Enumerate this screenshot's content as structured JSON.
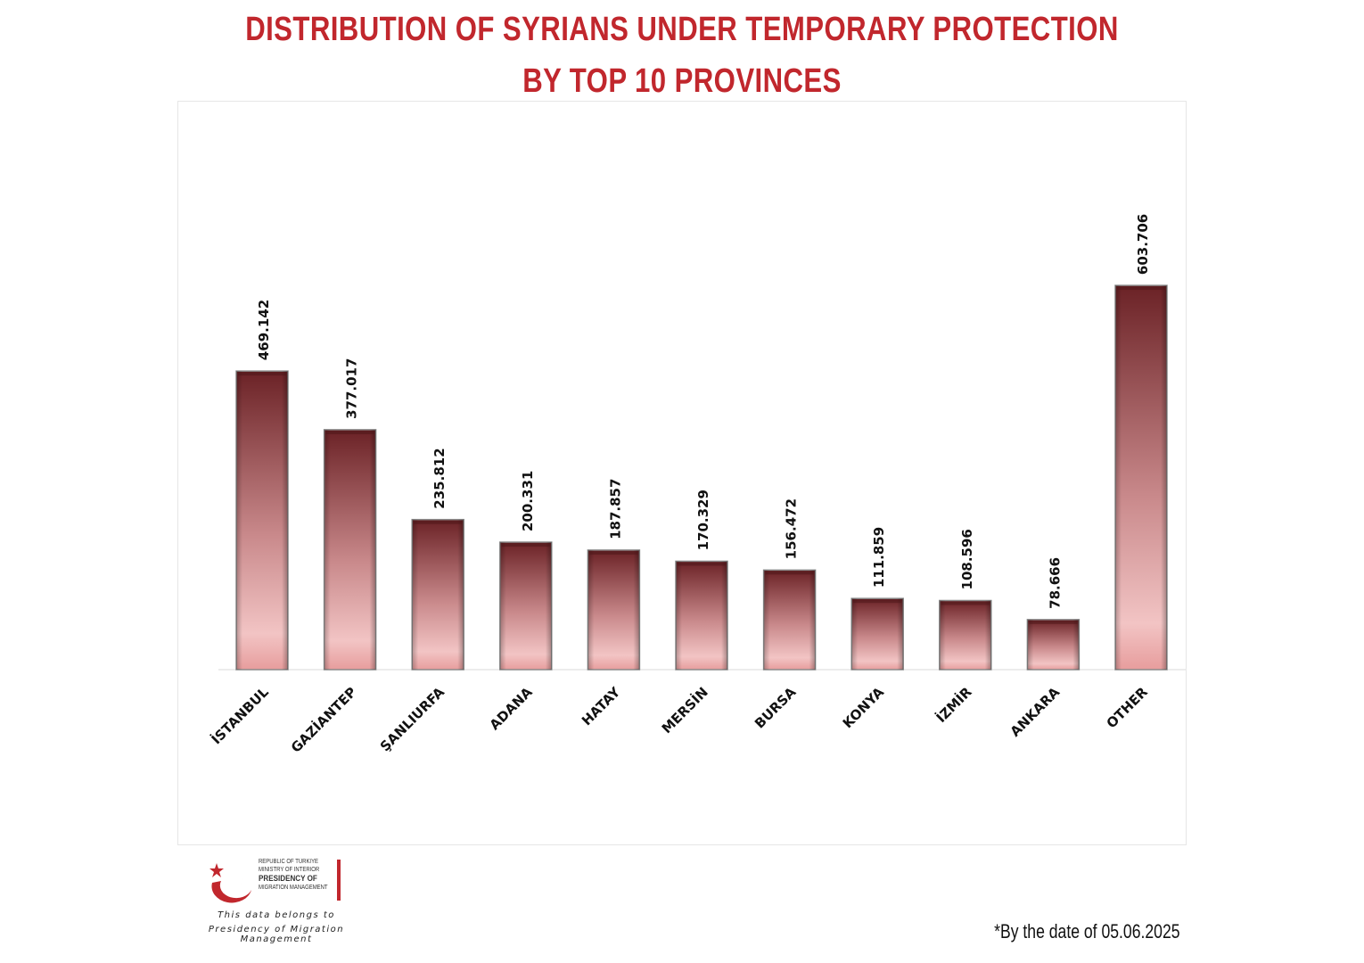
{
  "title_line1": "DISTRIBUTION OF SYRIANS UNDER TEMPORARY PROTECTION",
  "title_line2": "BY TOP 10 PROVINCES",
  "chart_data": {
    "type": "bar",
    "title": "DISTRIBUTION OF SYRIANS UNDER TEMPORARY PROTECTION BY TOP 10 PROVINCES",
    "categories": [
      "İSTANBUL",
      "GAZİANTEP",
      "ŞANLIURFA",
      "ADANA",
      "HATAY",
      "MERSİN",
      "BURSA",
      "KONYA",
      "İZMİR",
      "ANKARA",
      "OTHER"
    ],
    "values": [
      469142,
      377017,
      235812,
      200331,
      187857,
      170329,
      156472,
      111859,
      108596,
      78666,
      603706
    ],
    "value_labels": [
      "469.142",
      "377.017",
      "235.812",
      "200.331",
      "187.857",
      "170.329",
      "156.472",
      "111.859",
      "108.596",
      "78.666",
      "603.706"
    ],
    "ylim": [
      0,
      870000
    ],
    "grid": false,
    "legend": "none",
    "bar_color_top": "#6b2226",
    "bar_color_bottom": "#f2bcbc"
  },
  "logo": {
    "line1": "REPUBLIC OF TÜRKIYE",
    "line2": "MINISTRY OF INTERIOR",
    "line3": "PRESIDENCY OF",
    "line4": "MIGRATION MANAGEMENT",
    "accent_color": "#c1272d"
  },
  "credit_line1": "This data belongs to",
  "credit_line2": "Presidency of Migration Management",
  "date_note": "*By the date of 05.06.2025"
}
